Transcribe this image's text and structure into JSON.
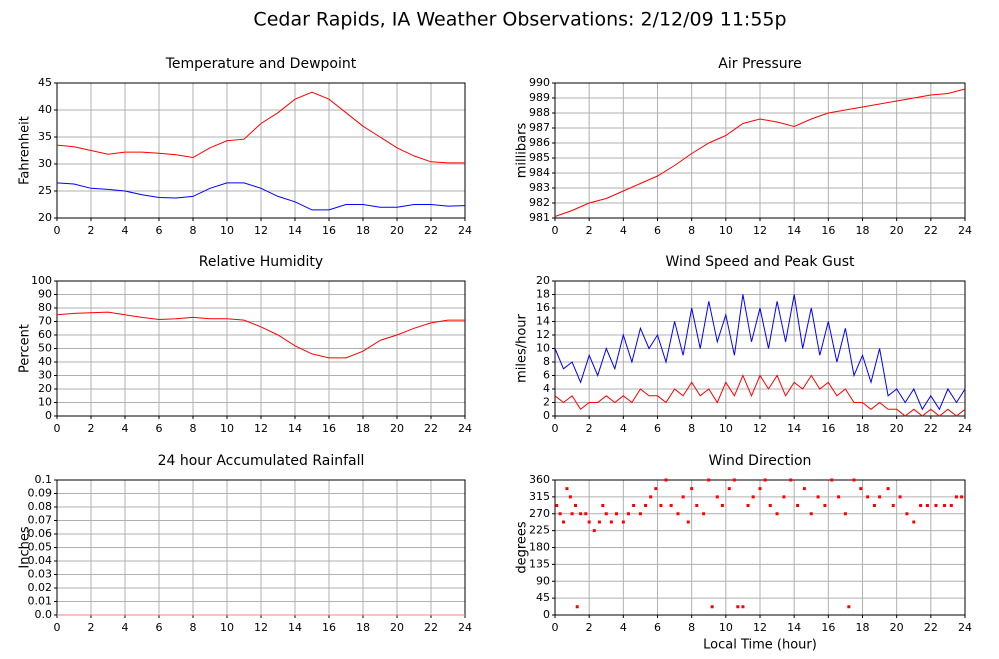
{
  "title": "Cedar Rapids, IA Weather Observations: 2/12/09 11:55p",
  "chart_data": [
    {
      "type": "line",
      "title": "Temperature and Dewpoint",
      "ylabel": "Fahrenheit",
      "x": [
        0,
        1,
        2,
        3,
        4,
        5,
        6,
        7,
        8,
        9,
        10,
        11,
        12,
        13,
        14,
        15,
        16,
        17,
        18,
        19,
        20,
        21,
        22,
        23,
        24
      ],
      "series": [
        {
          "color": "#ff0000",
          "values": [
            33.5,
            33.2,
            32.5,
            31.8,
            32.2,
            32.2,
            32,
            31.7,
            31.2,
            33,
            34.3,
            34.6,
            37.5,
            39.5,
            42,
            43.3,
            42,
            39.5,
            37,
            35,
            33,
            31.5,
            30.4,
            30.2,
            30.2
          ]
        },
        {
          "color": "#0000ff",
          "values": [
            26.5,
            26.3,
            25.5,
            25.3,
            25,
            24.3,
            23.8,
            23.7,
            24,
            25.5,
            26.5,
            26.5,
            25.5,
            24,
            23,
            21.5,
            21.5,
            22.5,
            22.5,
            22,
            22,
            22.5,
            22.5,
            22.2,
            22.3
          ]
        }
      ],
      "xlim": [
        0,
        24
      ],
      "xticks": [
        0,
        2,
        4,
        6,
        8,
        10,
        12,
        14,
        16,
        18,
        20,
        22,
        24
      ],
      "ylim": [
        20,
        45
      ],
      "yticks": [
        20,
        25,
        30,
        35,
        40,
        45
      ],
      "grid": true
    },
    {
      "type": "line",
      "title": "Air Pressure",
      "ylabel": "millibars",
      "x": [
        0,
        1,
        2,
        3,
        4,
        5,
        6,
        7,
        8,
        9,
        10,
        11,
        12,
        13,
        14,
        15,
        16,
        17,
        18,
        19,
        20,
        21,
        22,
        23,
        24
      ],
      "series": [
        {
          "color": "#ff0000",
          "values": [
            981.1,
            981.5,
            982,
            982.3,
            982.8,
            983.3,
            983.8,
            984.5,
            985.3,
            986,
            986.5,
            987.3,
            987.6,
            987.4,
            987.1,
            987.6,
            988,
            988.2,
            988.4,
            988.6,
            988.8,
            989.0,
            989.2,
            989.3,
            989.6
          ]
        }
      ],
      "xlim": [
        0,
        24
      ],
      "xticks": [
        0,
        2,
        4,
        6,
        8,
        10,
        12,
        14,
        16,
        18,
        20,
        22,
        24
      ],
      "ylim": [
        981,
        990
      ],
      "yticks": [
        981,
        982,
        983,
        984,
        985,
        986,
        987,
        988,
        989,
        990
      ],
      "grid": true
    },
    {
      "type": "line",
      "title": "Relative Humidity",
      "ylabel": "Percent",
      "x": [
        0,
        1,
        2,
        3,
        4,
        5,
        6,
        7,
        8,
        9,
        10,
        11,
        12,
        13,
        14,
        15,
        16,
        17,
        18,
        19,
        20,
        21,
        22,
        23,
        24
      ],
      "series": [
        {
          "color": "#ff0000",
          "values": [
            75,
            76,
            76.5,
            77,
            75,
            73,
            71.5,
            72,
            73,
            72,
            72,
            71,
            66,
            60,
            52,
            46,
            43,
            43,
            48,
            56,
            60,
            65,
            69,
            71,
            71
          ]
        }
      ],
      "xlim": [
        0,
        24
      ],
      "xticks": [
        0,
        2,
        4,
        6,
        8,
        10,
        12,
        14,
        16,
        18,
        20,
        22,
        24
      ],
      "ylim": [
        0,
        100
      ],
      "yticks": [
        0,
        10,
        20,
        30,
        40,
        50,
        60,
        70,
        80,
        90,
        100
      ],
      "grid": true
    },
    {
      "type": "line",
      "title": "Wind Speed and Peak Gust",
      "ylabel": "miles/hour",
      "x": [
        0,
        0.5,
        1,
        1.5,
        2,
        2.5,
        3,
        3.5,
        4,
        4.5,
        5,
        5.5,
        6,
        6.5,
        7,
        7.5,
        8,
        8.5,
        9,
        9.5,
        10,
        10.5,
        11,
        11.5,
        12,
        12.5,
        13,
        13.5,
        14,
        14.5,
        15,
        15.5,
        16,
        16.5,
        17,
        17.5,
        18,
        18.5,
        19,
        19.5,
        20,
        20.5,
        21,
        21.5,
        22,
        22.5,
        23,
        23.5,
        24
      ],
      "series": [
        {
          "color": "#0000ff",
          "values": [
            10,
            7,
            8,
            5,
            9,
            6,
            10,
            7,
            12,
            8,
            13,
            10,
            12,
            8,
            14,
            9,
            16,
            10,
            17,
            11,
            15,
            9,
            18,
            11,
            16,
            10,
            17,
            11,
            18,
            10,
            16,
            9,
            14,
            8,
            13,
            6,
            9,
            5,
            10,
            3,
            4,
            2,
            4,
            1,
            3,
            1,
            4,
            2,
            4
          ]
        },
        {
          "color": "#ff0000",
          "values": [
            3,
            2,
            3,
            1,
            2,
            2,
            3,
            2,
            3,
            2,
            4,
            3,
            3,
            2,
            4,
            3,
            5,
            3,
            4,
            2,
            5,
            3,
            6,
            3,
            6,
            4,
            6,
            3,
            5,
            4,
            6,
            4,
            5,
            3,
            4,
            2,
            2,
            1,
            2,
            1,
            1,
            0,
            1,
            0,
            1,
            0,
            1,
            0,
            1
          ]
        }
      ],
      "xlim": [
        0,
        24
      ],
      "xticks": [
        0,
        2,
        4,
        6,
        8,
        10,
        12,
        14,
        16,
        18,
        20,
        22,
        24
      ],
      "ylim": [
        0,
        20
      ],
      "yticks": [
        0,
        2,
        4,
        6,
        8,
        10,
        12,
        14,
        16,
        18,
        20
      ],
      "grid": true
    },
    {
      "type": "line",
      "title": "24 hour Accumulated Rainfall",
      "ylabel": "Inches",
      "x": [
        0,
        24
      ],
      "series": [
        {
          "color": "#ff8080",
          "values": [
            0,
            0
          ]
        }
      ],
      "xlim": [
        0,
        24
      ],
      "xticks": [
        0,
        2,
        4,
        6,
        8,
        10,
        12,
        14,
        16,
        18,
        20,
        22,
        24
      ],
      "ylim": [
        0,
        0.1
      ],
      "yticks": [
        {
          "value": 0,
          "label": "0.0"
        },
        0.01,
        0.02,
        0.03,
        0.04,
        0.05,
        0.06,
        0.07,
        0.08,
        0.09,
        0.1
      ],
      "grid": true
    },
    {
      "type": "scatter",
      "title": "Wind Direction",
      "ylabel": "degrees",
      "xlabel": "Local Time (hour)",
      "series": [
        {
          "color": "#ff0000",
          "x": [
            0.1,
            0.3,
            0.5,
            0.7,
            0.9,
            1.0,
            1.2,
            1.3,
            1.5,
            1.8,
            2.0,
            2.3,
            2.6,
            2.8,
            3.0,
            3.3,
            3.6,
            4.0,
            4.3,
            4.6,
            5.0,
            5.3,
            5.6,
            5.9,
            6.2,
            6.5,
            6.8,
            7.2,
            7.5,
            7.8,
            8.0,
            8.3,
            8.7,
            9.0,
            9.2,
            9.5,
            9.8,
            10.2,
            10.5,
            10.7,
            11.0,
            11.3,
            11.6,
            12.0,
            12.3,
            12.6,
            13.0,
            13.4,
            13.8,
            14.2,
            14.6,
            15.0,
            15.4,
            15.8,
            16.2,
            16.6,
            17.0,
            17.2,
            17.5,
            17.9,
            18.3,
            18.7,
            19.0,
            19.5,
            19.8,
            20.2,
            20.6,
            21.0,
            21.4,
            21.8,
            22.3,
            22.8,
            23.2,
            23.5,
            23.8
          ],
          "values": [
            292,
            270,
            248,
            337,
            315,
            270,
            292,
            22,
            270,
            270,
            248,
            225,
            248,
            292,
            270,
            248,
            270,
            248,
            270,
            292,
            270,
            292,
            315,
            337,
            292,
            360,
            292,
            270,
            315,
            248,
            337,
            292,
            270,
            360,
            22,
            315,
            292,
            337,
            360,
            22,
            22,
            292,
            315,
            337,
            360,
            292,
            270,
            315,
            360,
            292,
            337,
            270,
            315,
            292,
            360,
            315,
            270,
            22,
            360,
            337,
            315,
            292,
            315,
            337,
            292,
            315,
            270,
            248,
            292,
            292,
            292,
            292,
            292,
            315,
            315
          ]
        }
      ],
      "xlim": [
        0,
        24
      ],
      "xticks": [
        0,
        2,
        4,
        6,
        8,
        10,
        12,
        14,
        16,
        18,
        20,
        22,
        24
      ],
      "ylim": [
        0,
        360
      ],
      "yticks": [
        0,
        45,
        90,
        135,
        180,
        225,
        270,
        315,
        360
      ],
      "grid": true
    }
  ]
}
